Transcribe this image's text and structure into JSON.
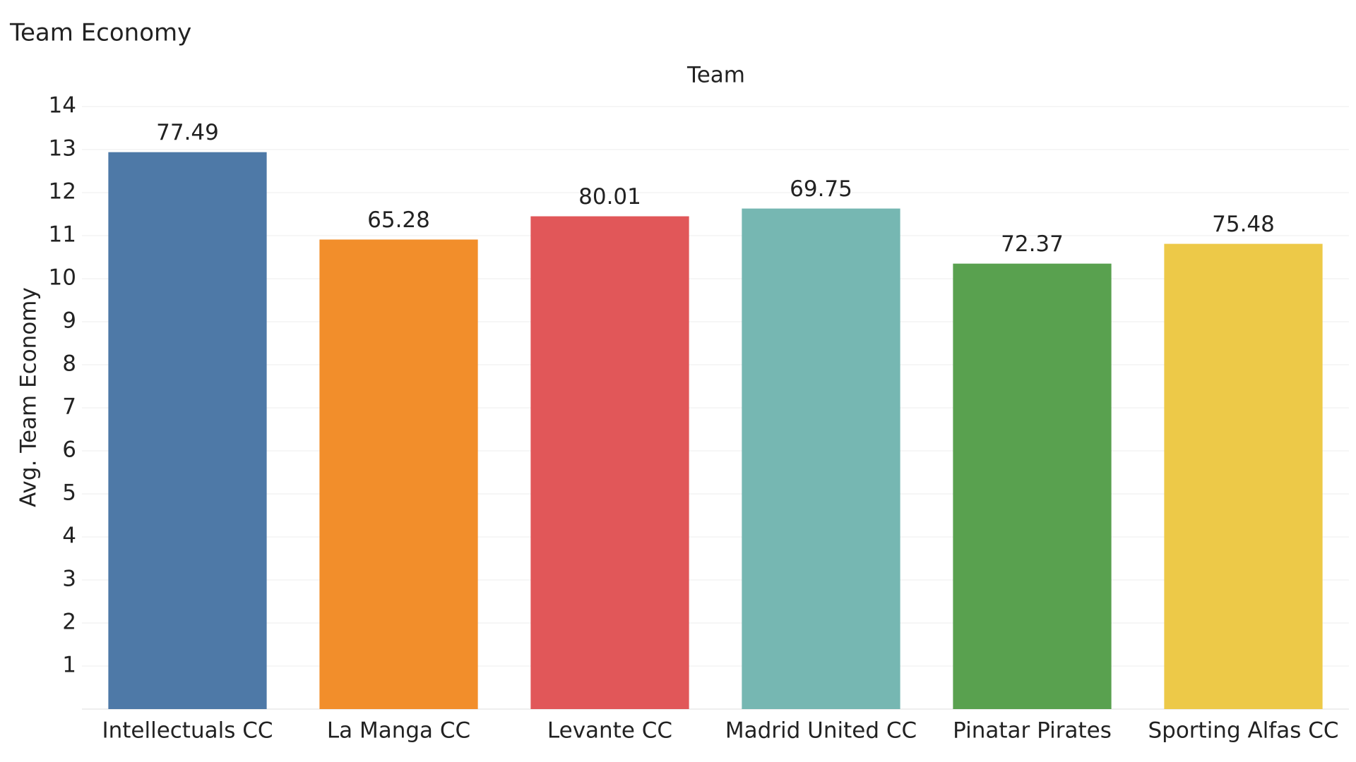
{
  "chart_data": {
    "type": "bar",
    "title": "Team Economy",
    "x_label": "Team",
    "y_label": "Avg. Team Economy",
    "categories": [
      "Intellectuals CC",
      "La Manga CC",
      "Levante CC",
      "Madrid United CC",
      "Pinatar Pirates",
      "Sporting Alfas CC"
    ],
    "values": [
      12.94,
      10.91,
      11.45,
      11.63,
      10.35,
      10.81
    ],
    "bar_labels": [
      77.49,
      65.28,
      80.01,
      69.75,
      72.37,
      75.48
    ],
    "colors": [
      "#4e79a7",
      "#f28e2b",
      "#e15759",
      "#76b7b2",
      "#59a14f",
      "#edc948"
    ],
    "ylim": [
      0,
      14
    ],
    "yticks": [
      1,
      2,
      3,
      4,
      5,
      6,
      7,
      8,
      9,
      10,
      11,
      12,
      13,
      14
    ],
    "grid": true
  }
}
